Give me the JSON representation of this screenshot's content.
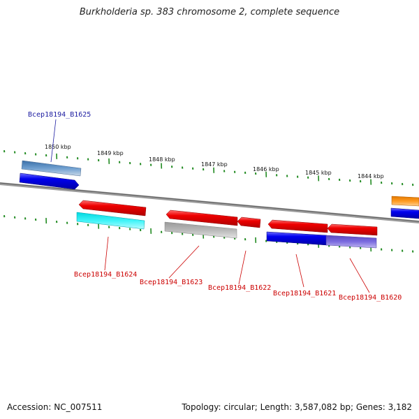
{
  "title": "Burkholderia sp. 383 chromosome 2, complete sequence",
  "scale": {
    "labels": [
      "1850 kbp",
      "1849 kbp",
      "1848 kbp",
      "1847 kbp",
      "1846 kbp",
      "1845 kbp",
      "1844 kbp"
    ]
  },
  "genes": {
    "top": [
      {
        "name": "Bcep18194_B1625",
        "color": "#1a1aa0"
      }
    ],
    "bottom": [
      {
        "name": "Bcep18194_B1624",
        "color": "#cc0000"
      },
      {
        "name": "Bcep18194_B1623",
        "color": "#cc0000"
      },
      {
        "name": "Bcep18194_B1622",
        "color": "#cc0000"
      },
      {
        "name": "Bcep18194_B1621",
        "color": "#cc0000"
      },
      {
        "name": "Bcep18194_B1620",
        "color": "#cc0000"
      }
    ]
  },
  "colors": {
    "forward_strand": "#0000ee",
    "reverse_strand": "#ee0000",
    "cog_steelblue": "#4a7fb5",
    "cog_cyan": "#00e0e8",
    "cog_gray": "#a8a8a8",
    "cog_purple": "#6a5acd",
    "cog_orange": "#ff8c00",
    "tick_green": "#228b22",
    "backbone": "#888888"
  },
  "footer": {
    "accession": "Accession: NC_007511",
    "summary": "Topology: circular; Length: 3,587,082 bp; Genes: 3,182"
  }
}
